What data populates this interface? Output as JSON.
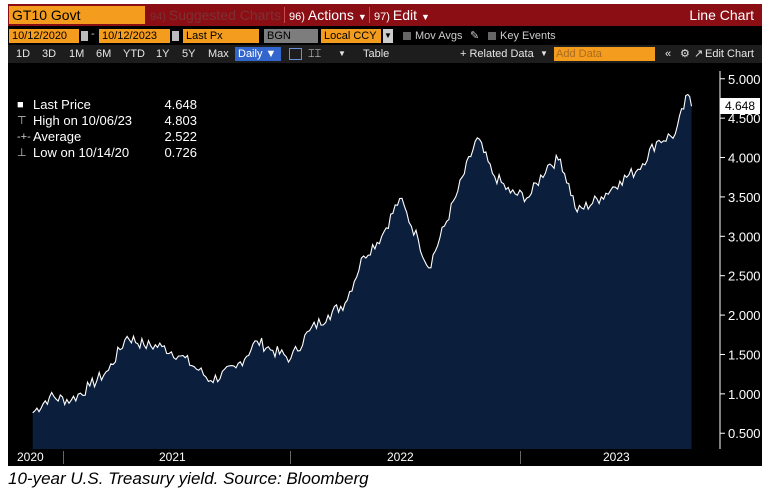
{
  "title_bar": {
    "ticker": "GT10 Govt",
    "suggested": {
      "num": "94)",
      "label": "Suggested Charts"
    },
    "actions": {
      "num": "96)",
      "label": "Actions"
    },
    "edit": {
      "num": "97)",
      "label": "Edit"
    },
    "view_name": "Line Chart"
  },
  "controls": {
    "start_date": "10/12/2020",
    "end_date": "10/12/2023",
    "field": "Last Px",
    "source": "BGN",
    "currency": "Local CCY",
    "mov_avgs": "Mov Avgs",
    "key_events": "Key Events"
  },
  "toolbar": {
    "ranges": [
      "1D",
      "3D",
      "1M",
      "6M",
      "YTD",
      "1Y",
      "5Y",
      "Max"
    ],
    "frequency": "Daily",
    "table": "Table",
    "related": "+ Related Data",
    "add_placeholder": "Add Data",
    "edit_chart": "Edit Chart"
  },
  "legend": [
    {
      "label": "Last Price",
      "value": "4.648"
    },
    {
      "label": "High on 10/06/23",
      "value": "4.803"
    },
    {
      "label": "Average",
      "value": "2.522"
    },
    {
      "label": "Low on 10/14/20",
      "value": "0.726"
    }
  ],
  "last_price_tag": "4.648",
  "caption": "10-year U.S. Treasury yield. Source: Bloomberg",
  "colors": {
    "area_fill": "#0b1e3b",
    "line": "#ffffff",
    "title_bar": "#8b0e14",
    "accent_orange": "#f39c1d",
    "selected_blue": "#3366cc"
  },
  "icons": [
    "line-chart-icon",
    "calendar-icon",
    "pencil-icon",
    "collapse-icon",
    "settings-icon"
  ],
  "chart_data": {
    "type": "area",
    "title": "",
    "xlabel": "",
    "ylabel": "",
    "x": [
      "2020-10-12",
      "2020-11-09",
      "2020-12-15",
      "2021-01-15",
      "2021-02-15",
      "2021-03-18",
      "2021-04-15",
      "2021-05-15",
      "2021-06-15",
      "2021-07-15",
      "2021-08-04",
      "2021-09-15",
      "2021-10-20",
      "2021-11-15",
      "2021-12-15",
      "2022-01-15",
      "2022-02-15",
      "2022-03-15",
      "2022-04-15",
      "2022-05-15",
      "2022-06-14",
      "2022-07-15",
      "2022-08-01",
      "2022-09-15",
      "2022-10-21",
      "2022-11-15",
      "2022-12-15",
      "2023-01-15",
      "2023-02-15",
      "2023-03-08",
      "2023-04-05",
      "2023-05-15",
      "2023-06-15",
      "2023-07-15",
      "2023-08-15",
      "2023-09-15",
      "2023-10-06",
      "2023-10-12"
    ],
    "series": [
      {
        "values": [
          0.76,
          0.96,
          0.92,
          1.1,
          1.3,
          1.73,
          1.62,
          1.6,
          1.48,
          1.3,
          1.17,
          1.33,
          1.67,
          1.55,
          1.45,
          1.8,
          2.0,
          2.15,
          2.75,
          3.0,
          3.48,
          2.95,
          2.6,
          3.5,
          4.25,
          3.8,
          3.55,
          3.5,
          3.9,
          3.98,
          3.31,
          3.5,
          3.7,
          3.85,
          4.2,
          4.3,
          4.8,
          4.65
        ]
      }
    ],
    "ylim": [
      0.3,
      5.2
    ],
    "yticks": [
      "0.500",
      "1.000",
      "1.500",
      "2.000",
      "2.500",
      "3.000",
      "3.500",
      "4.000",
      "4.500",
      "5.000"
    ],
    "xlim": [
      "2020-09-01",
      "2023-11-15"
    ],
    "year_labels": [
      "2020",
      "2021",
      "2022",
      "2023"
    ],
    "grid": false,
    "legend_position": "top-left"
  }
}
